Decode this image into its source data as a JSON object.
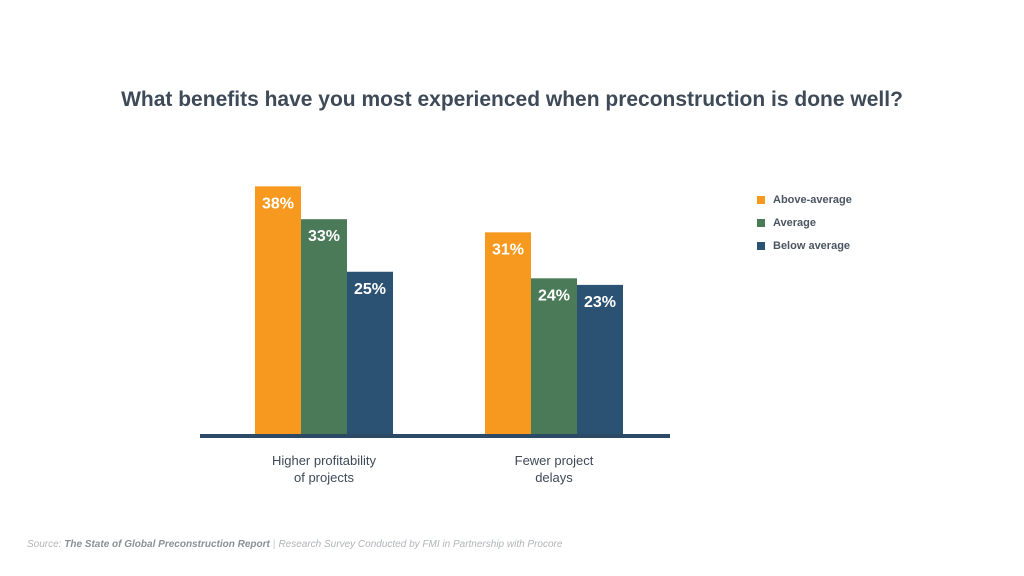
{
  "chart_data": {
    "type": "bar",
    "title": "What benefits have you most experienced when preconstruction is done well?",
    "categories": [
      "Higher profitability\nof projects",
      "Fewer project\ndelays"
    ],
    "series": [
      {
        "name": "Above-average",
        "color": "#F7991F",
        "values": [
          38,
          31
        ]
      },
      {
        "name": "Average",
        "color": "#4A7A57",
        "values": [
          33,
          24
        ]
      },
      {
        "name": "Below average",
        "color": "#2C5273",
        "values": [
          25,
          23
        ]
      }
    ],
    "value_suffix": "%",
    "ylim": [
      0,
      40
    ],
    "grid": false,
    "legend": "right"
  },
  "source": {
    "prefix": "Source:",
    "report": "The State of Global Preconstruction Report",
    "separator": "|",
    "note": "Research Survey Conducted by FMI in Partnership with Procore"
  }
}
